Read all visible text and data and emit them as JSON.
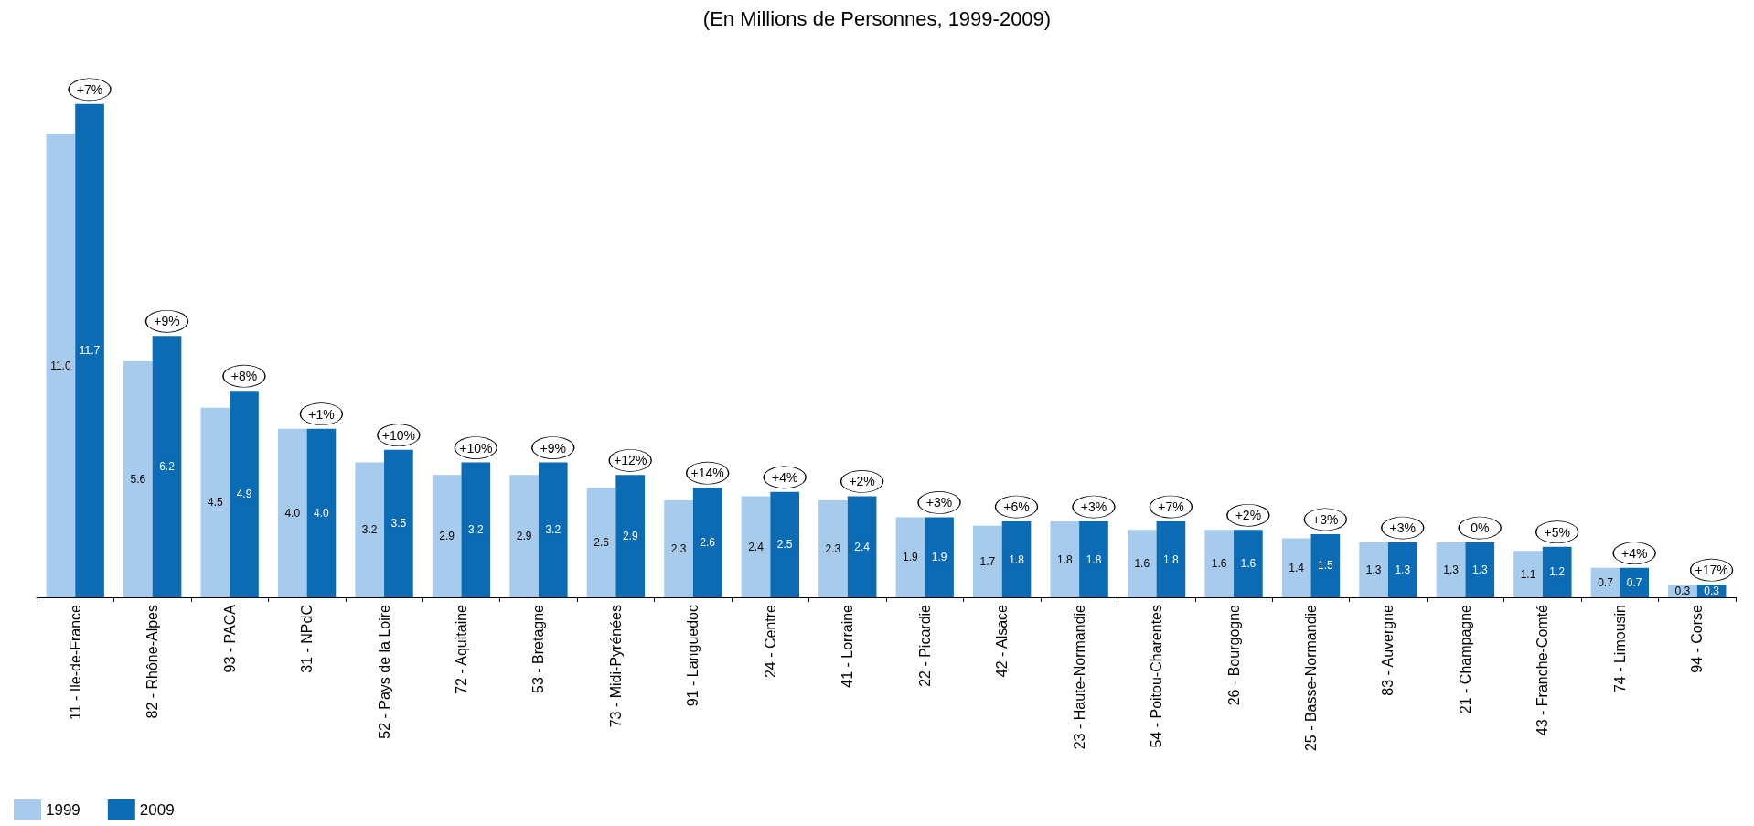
{
  "chart_data": {
    "type": "bar",
    "title": "(En Millions de Personnes, 1999-2009)",
    "categories": [
      "11 - Ile-de-France",
      "82 - Rhône-Alpes",
      "93 - PACA",
      "31 - NPdC",
      "52 - Pays de la Loire",
      "72 - Aquitaine",
      "53 - Bretagne",
      "73 - Midi-Pyrénées",
      "91 - Languedoc",
      "24 - Centre",
      "41 - Lorraine",
      "22 - Picardie",
      "42 - Alsace",
      "23 - Haute-Normandie",
      "54 - Poitou-Charentes",
      "26 - Bourgogne",
      "25 - Basse-Normandie",
      "83 - Auvergne",
      "21 - Champagne",
      "43 - Franche-Comté",
      "74 - Limousin",
      "94 - Corse"
    ],
    "series": [
      {
        "name": "1999",
        "color": "#a6cbec",
        "values": [
          11.0,
          5.6,
          4.5,
          4.0,
          3.2,
          2.9,
          2.9,
          2.6,
          2.3,
          2.4,
          2.3,
          1.9,
          1.7,
          1.8,
          1.6,
          1.6,
          1.4,
          1.3,
          1.3,
          1.1,
          0.7,
          0.3
        ],
        "value_labels": [
          "11.0",
          "5.6",
          "4.5",
          "4.0",
          "3.2",
          "2.9",
          "2.9",
          "2.6",
          "2.3",
          "2.4",
          "2.3",
          "1.9",
          "1.7",
          "1.8",
          "1.6",
          "1.6",
          "1.4",
          "1.3",
          "1.3",
          "1.1",
          "0.7",
          "0.3"
        ]
      },
      {
        "name": "2009",
        "color": "#0b6bb4",
        "values": [
          11.7,
          6.2,
          4.9,
          4.0,
          3.5,
          3.2,
          3.2,
          2.9,
          2.6,
          2.5,
          2.4,
          1.9,
          1.8,
          1.8,
          1.8,
          1.6,
          1.5,
          1.3,
          1.3,
          1.2,
          0.7,
          0.3
        ],
        "value_labels": [
          "11.7",
          "6.2",
          "4.9",
          "4.0",
          "3.5",
          "3.2",
          "3.2",
          "2.9",
          "2.6",
          "2.5",
          "2.4",
          "1.9",
          "1.8",
          "1.8",
          "1.8",
          "1.6",
          "1.5",
          "1.3",
          "1.3",
          "1.2",
          "0.7",
          "0.3"
        ]
      }
    ],
    "annotations": [
      {
        "text": "+7%",
        "x": "11 - Ile-de-France",
        "y": 11.7
      },
      {
        "text": "+9%",
        "x": "82 - Rhône-Alpes",
        "y": 6.2
      },
      {
        "text": "+8%",
        "x": "93 - PACA",
        "y": 4.9
      },
      {
        "text": "+1%",
        "x": "31 - NPdC",
        "y": 4.0
      },
      {
        "text": "+10%",
        "x": "52 - Pays de la Loire",
        "y": 3.5
      },
      {
        "text": "+10%",
        "x": "72 - Aquitaine",
        "y": 3.2
      },
      {
        "text": "+9%",
        "x": "53 - Bretagne",
        "y": 3.2
      },
      {
        "text": "+12%",
        "x": "73 - Midi-Pyrénées",
        "y": 2.9
      },
      {
        "text": "+14%",
        "x": "91 - Languedoc",
        "y": 2.6
      },
      {
        "text": "+4%",
        "x": "24 - Centre",
        "y": 2.5
      },
      {
        "text": "+2%",
        "x": "41 - Lorraine",
        "y": 2.4
      },
      {
        "text": "+3%",
        "x": "22 - Picardie",
        "y": 1.9
      },
      {
        "text": "+6%",
        "x": "42 - Alsace",
        "y": 1.8
      },
      {
        "text": "+3%",
        "x": "23 - Haute-Normandie",
        "y": 1.8
      },
      {
        "text": "+7%",
        "x": "54 - Poitou-Charentes",
        "y": 1.8
      },
      {
        "text": "+2%",
        "x": "26 - Bourgogne",
        "y": 1.6
      },
      {
        "text": "+3%",
        "x": "25 - Basse-Normandie",
        "y": 1.5
      },
      {
        "text": "+3%",
        "x": "83 - Auvergne",
        "y": 1.3
      },
      {
        "text": "0%",
        "x": "21 - Champagne",
        "y": 1.3
      },
      {
        "text": "+5%",
        "x": "43 - Franche-Comté",
        "y": 1.2
      },
      {
        "text": "+4%",
        "x": "74 - Limousin",
        "y": 0.7
      },
      {
        "text": "+17%",
        "x": "94 - Corse",
        "y": 0.3
      }
    ],
    "legend": "bottom left",
    "grid": false
  }
}
